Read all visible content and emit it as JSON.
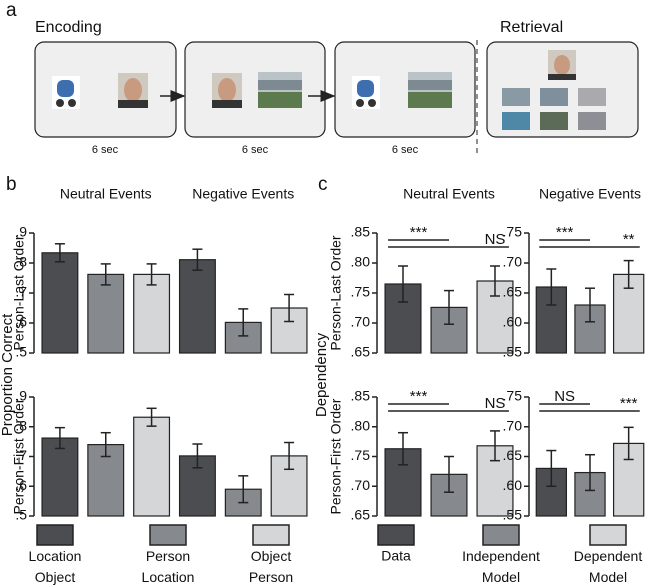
{
  "figure": {
    "panel_labels": [
      "a",
      "b",
      "c"
    ],
    "encoding": "Encoding",
    "retrieval": "Retrieval",
    "durations": [
      "6 sec",
      "6 sec",
      "6 sec"
    ],
    "panel_b": {
      "ylabel": "Proportion Correct"
    },
    "panel_c": {
      "ylabel": "Dependency"
    }
  },
  "chart_data": [
    {
      "type": "bar",
      "ylabel": "Person-Last Order",
      "categories": [
        "Neutral Events",
        "Negative Events"
      ],
      "ylim": [
        0.5,
        0.9
      ],
      "yticks": [
        {
          "value": 0.5,
          "label": ".5"
        },
        {
          "value": 0.6,
          "label": ".6"
        },
        {
          "value": 0.7,
          "label": ".7"
        },
        {
          "value": 0.8,
          "label": ".8"
        },
        {
          "value": 0.9,
          "label": ".9"
        }
      ],
      "series": [
        {
          "name": "Location Object",
          "color": "#4b4d51",
          "values": [
            0.834,
            0.811
          ],
          "errors": [
            0.03,
            0.035
          ]
        },
        {
          "name": "Person Location",
          "color": "#86898e",
          "values": [
            0.762,
            0.602
          ],
          "errors": [
            0.035,
            0.045
          ]
        },
        {
          "name": "Object Person",
          "color": "#d4d6d7",
          "values": [
            0.762,
            0.65
          ],
          "errors": [
            0.035,
            0.045
          ]
        }
      ]
    },
    {
      "type": "bar",
      "ylabel": "Person-First Order",
      "categories": [
        null,
        null
      ],
      "ylim": [
        0.5,
        0.9
      ],
      "yticks": [
        {
          "value": 0.5,
          "label": ".5"
        },
        {
          "value": 0.6,
          "label": ".6"
        },
        {
          "value": 0.7,
          "label": ".7"
        },
        {
          "value": 0.8,
          "label": ".8"
        },
        {
          "value": 0.9,
          "label": ".9"
        }
      ],
      "series": [
        {
          "color": "#4b4d51",
          "values": [
            0.762,
            0.702
          ],
          "errors": [
            0.035,
            0.04
          ]
        },
        {
          "color": "#86898e",
          "values": [
            0.74,
            0.59
          ],
          "errors": [
            0.04,
            0.045
          ]
        },
        {
          "color": "#d4d6d7",
          "values": [
            0.832,
            0.702
          ],
          "errors": [
            0.03,
            0.045
          ]
        }
      ]
    },
    {
      "type": "bar",
      "title": "Neutral Events",
      "ylabel": "Person-Last Order",
      "ylim": [
        0.65,
        0.85
      ],
      "yticks": [
        {
          "value": 0.65,
          "label": ".65"
        },
        {
          "value": 0.7,
          "label": ".70"
        },
        {
          "value": 0.75,
          "label": ".75"
        },
        {
          "value": 0.8,
          "label": ".80"
        },
        {
          "value": 0.85,
          "label": ".85"
        }
      ],
      "series": [
        {
          "name": "Data",
          "color": "#4b4d51",
          "values": [
            0.765
          ],
          "errors": [
            0.03
          ]
        },
        {
          "name": "Independent Model",
          "color": "#86898e",
          "values": [
            0.726
          ],
          "errors": [
            0.028
          ]
        },
        {
          "name": "Dependent Model",
          "color": "#d4d6d7",
          "values": [
            0.77
          ],
          "errors": [
            0.025
          ]
        }
      ],
      "annotations": [
        {
          "text": "***",
          "from": 0,
          "to": 1
        },
        {
          "text": "NS",
          "from": 0,
          "to": 2
        }
      ]
    },
    {
      "type": "bar",
      "title": "Negative Events",
      "ylim": [
        0.55,
        0.75
      ],
      "yticks": [
        {
          "value": 0.55,
          "label": ".55"
        },
        {
          "value": 0.6,
          "label": ".60"
        },
        {
          "value": 0.65,
          "label": ".65"
        },
        {
          "value": 0.7,
          "label": ".70"
        },
        {
          "value": 0.75,
          "label": ".75"
        }
      ],
      "series": [
        {
          "color": "#4b4d51",
          "values": [
            0.66
          ],
          "errors": [
            0.03
          ]
        },
        {
          "color": "#86898e",
          "values": [
            0.63
          ],
          "errors": [
            0.028
          ]
        },
        {
          "color": "#d4d6d7",
          "values": [
            0.681
          ],
          "errors": [
            0.023
          ]
        }
      ],
      "annotations": [
        {
          "text": "***",
          "from": 0,
          "to": 1
        },
        {
          "text": "**",
          "from": 0,
          "to": 2
        }
      ]
    },
    {
      "type": "bar",
      "ylabel": "Person-First Order",
      "ylim": [
        0.65,
        0.85
      ],
      "yticks": [
        {
          "value": 0.65,
          "label": ".65"
        },
        {
          "value": 0.7,
          "label": ".70"
        },
        {
          "value": 0.75,
          "label": ".75"
        },
        {
          "value": 0.8,
          "label": ".80"
        },
        {
          "value": 0.85,
          "label": ".85"
        }
      ],
      "series": [
        {
          "color": "#4b4d51",
          "values": [
            0.763
          ],
          "errors": [
            0.027
          ]
        },
        {
          "color": "#86898e",
          "values": [
            0.72
          ],
          "errors": [
            0.03
          ]
        },
        {
          "color": "#d4d6d7",
          "values": [
            0.768
          ],
          "errors": [
            0.025
          ]
        }
      ],
      "annotations": [
        {
          "text": "***",
          "from": 0,
          "to": 1
        },
        {
          "text": "NS",
          "from": 0,
          "to": 2
        }
      ]
    },
    {
      "type": "bar",
      "ylim": [
        0.55,
        0.75
      ],
      "yticks": [
        {
          "value": 0.55,
          "label": ".55"
        },
        {
          "value": 0.6,
          "label": ".60"
        },
        {
          "value": 0.65,
          "label": ".65"
        },
        {
          "value": 0.7,
          "label": ".70"
        },
        {
          "value": 0.75,
          "label": ".75"
        }
      ],
      "series": [
        {
          "color": "#4b4d51",
          "values": [
            0.63
          ],
          "errors": [
            0.03
          ]
        },
        {
          "color": "#86898e",
          "values": [
            0.623
          ],
          "errors": [
            0.03
          ]
        },
        {
          "color": "#d4d6d7",
          "values": [
            0.672
          ],
          "errors": [
            0.027
          ]
        }
      ],
      "annotations": [
        {
          "text": "NS",
          "from": 0,
          "to": 1
        },
        {
          "text": "***",
          "from": 0,
          "to": 2
        }
      ]
    }
  ]
}
